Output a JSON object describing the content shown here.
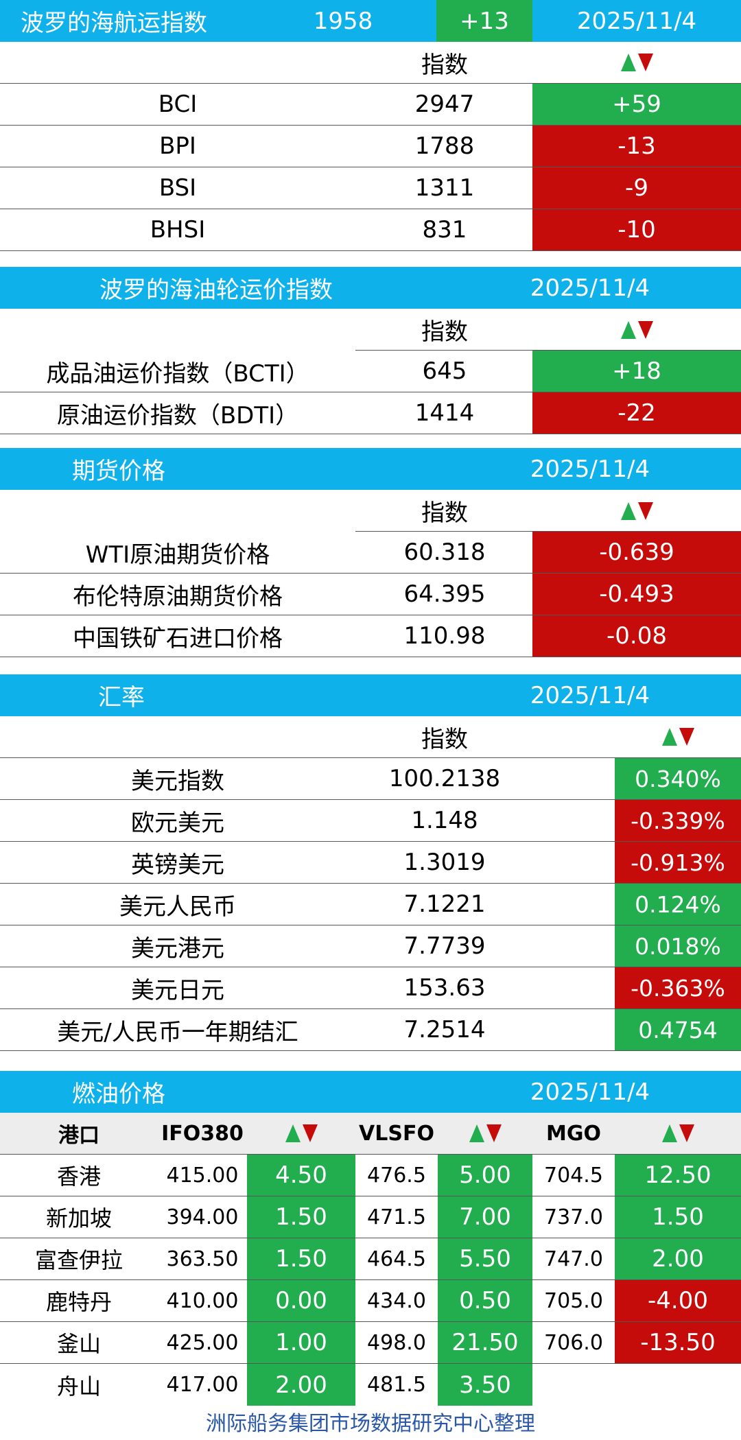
{
  "bdi": {
    "title": "波罗的海航运指数",
    "value": "1958",
    "change": "+13",
    "date": "2025/11/4",
    "subheader": "指数",
    "rows": [
      {
        "name": "BCI",
        "value": "2947",
        "change": "+59",
        "dir": "up"
      },
      {
        "name": "BPI",
        "value": "1788",
        "change": "-13",
        "dir": "down"
      },
      {
        "name": "BSI",
        "value": "1311",
        "change": "-9",
        "dir": "down"
      },
      {
        "name": "BHSI",
        "value": "831",
        "change": "-10",
        "dir": "down"
      }
    ]
  },
  "tanker": {
    "title": "波罗的海油轮运价指数",
    "date": "2025/11/4",
    "subheader": "指数",
    "rows": [
      {
        "name": "成品油运价指数（BCTI）",
        "value": "645",
        "change": "+18",
        "dir": "up"
      },
      {
        "name": "原油运价指数（BDTI）",
        "value": "1414",
        "change": "-22",
        "dir": "down"
      }
    ]
  },
  "futures": {
    "title": "期货价格",
    "date": "2025/11/4",
    "subheader": "指数",
    "rows": [
      {
        "name": "WTI原油期货价格",
        "value": "60.318",
        "change": "-0.639",
        "dir": "down"
      },
      {
        "name": "布伦特原油期货价格",
        "value": "64.395",
        "change": "-0.493",
        "dir": "down"
      },
      {
        "name": "中国铁矿石进口价格",
        "value": "110.98",
        "change": "-0.08",
        "dir": "down"
      }
    ]
  },
  "fx": {
    "title": "汇率",
    "date": "2025/11/4",
    "subheader": "指数",
    "rows": [
      {
        "name": "美元指数",
        "value": "100.2138",
        "change": "0.340%",
        "dir": "up"
      },
      {
        "name": "欧元美元",
        "value": "1.148",
        "change": "-0.339%",
        "dir": "down"
      },
      {
        "name": "英镑美元",
        "value": "1.3019",
        "change": "-0.913%",
        "dir": "down"
      },
      {
        "name": "美元人民币",
        "value": "7.1221",
        "change": "0.124%",
        "dir": "up"
      },
      {
        "name": "美元港元",
        "value": "7.7739",
        "change": "0.018%",
        "dir": "up"
      },
      {
        "name": "美元日元",
        "value": "153.63",
        "change": "-0.363%",
        "dir": "down"
      },
      {
        "name": "美元/人民币一年期结汇",
        "value": "7.2514",
        "change": "0.4754",
        "dir": "up"
      }
    ]
  },
  "fuel": {
    "title": "燃油价格",
    "date": "2025/11/4",
    "columns": {
      "port": "港口",
      "ifo": "IFO380",
      "vlsfo": "VLSFO",
      "mgo": "MGO"
    },
    "rows": [
      {
        "port": "香港",
        "ifo": "415.00",
        "ifo_chg": "4.50",
        "ifo_dir": "up",
        "vlsfo": "476.5",
        "vlsfo_chg": "5.00",
        "vlsfo_dir": "up",
        "mgo": "704.5",
        "mgo_chg": "12.50",
        "mgo_dir": "up"
      },
      {
        "port": "新加坡",
        "ifo": "394.00",
        "ifo_chg": "1.50",
        "ifo_dir": "up",
        "vlsfo": "471.5",
        "vlsfo_chg": "7.00",
        "vlsfo_dir": "up",
        "mgo": "737.0",
        "mgo_chg": "1.50",
        "mgo_dir": "up"
      },
      {
        "port": "富查伊拉",
        "ifo": "363.50",
        "ifo_chg": "1.50",
        "ifo_dir": "up",
        "vlsfo": "464.5",
        "vlsfo_chg": "5.50",
        "vlsfo_dir": "up",
        "mgo": "747.0",
        "mgo_chg": "2.00",
        "mgo_dir": "up"
      },
      {
        "port": "鹿特丹",
        "ifo": "410.00",
        "ifo_chg": "0.00",
        "ifo_dir": "up",
        "vlsfo": "434.0",
        "vlsfo_chg": "0.50",
        "vlsfo_dir": "up",
        "mgo": "705.0",
        "mgo_chg": "-4.00",
        "mgo_dir": "down"
      },
      {
        "port": "釜山",
        "ifo": "425.00",
        "ifo_chg": "1.00",
        "ifo_dir": "up",
        "vlsfo": "498.0",
        "vlsfo_chg": "21.50",
        "vlsfo_dir": "up",
        "mgo": "706.0",
        "mgo_chg": "-13.50",
        "mgo_dir": "down"
      },
      {
        "port": "舟山",
        "ifo": "417.00",
        "ifo_chg": "2.00",
        "ifo_dir": "up",
        "vlsfo": "481.5",
        "vlsfo_chg": "3.50",
        "vlsfo_dir": "up",
        "mgo": "",
        "mgo_chg": "",
        "mgo_dir": ""
      }
    ]
  },
  "footer": "洲际船务集团市场数据研究中心整理",
  "colors": {
    "header": "#0fb1ea",
    "up": "#22ad4f",
    "down": "#c60b0b",
    "footer_text": "#2b57a8"
  }
}
